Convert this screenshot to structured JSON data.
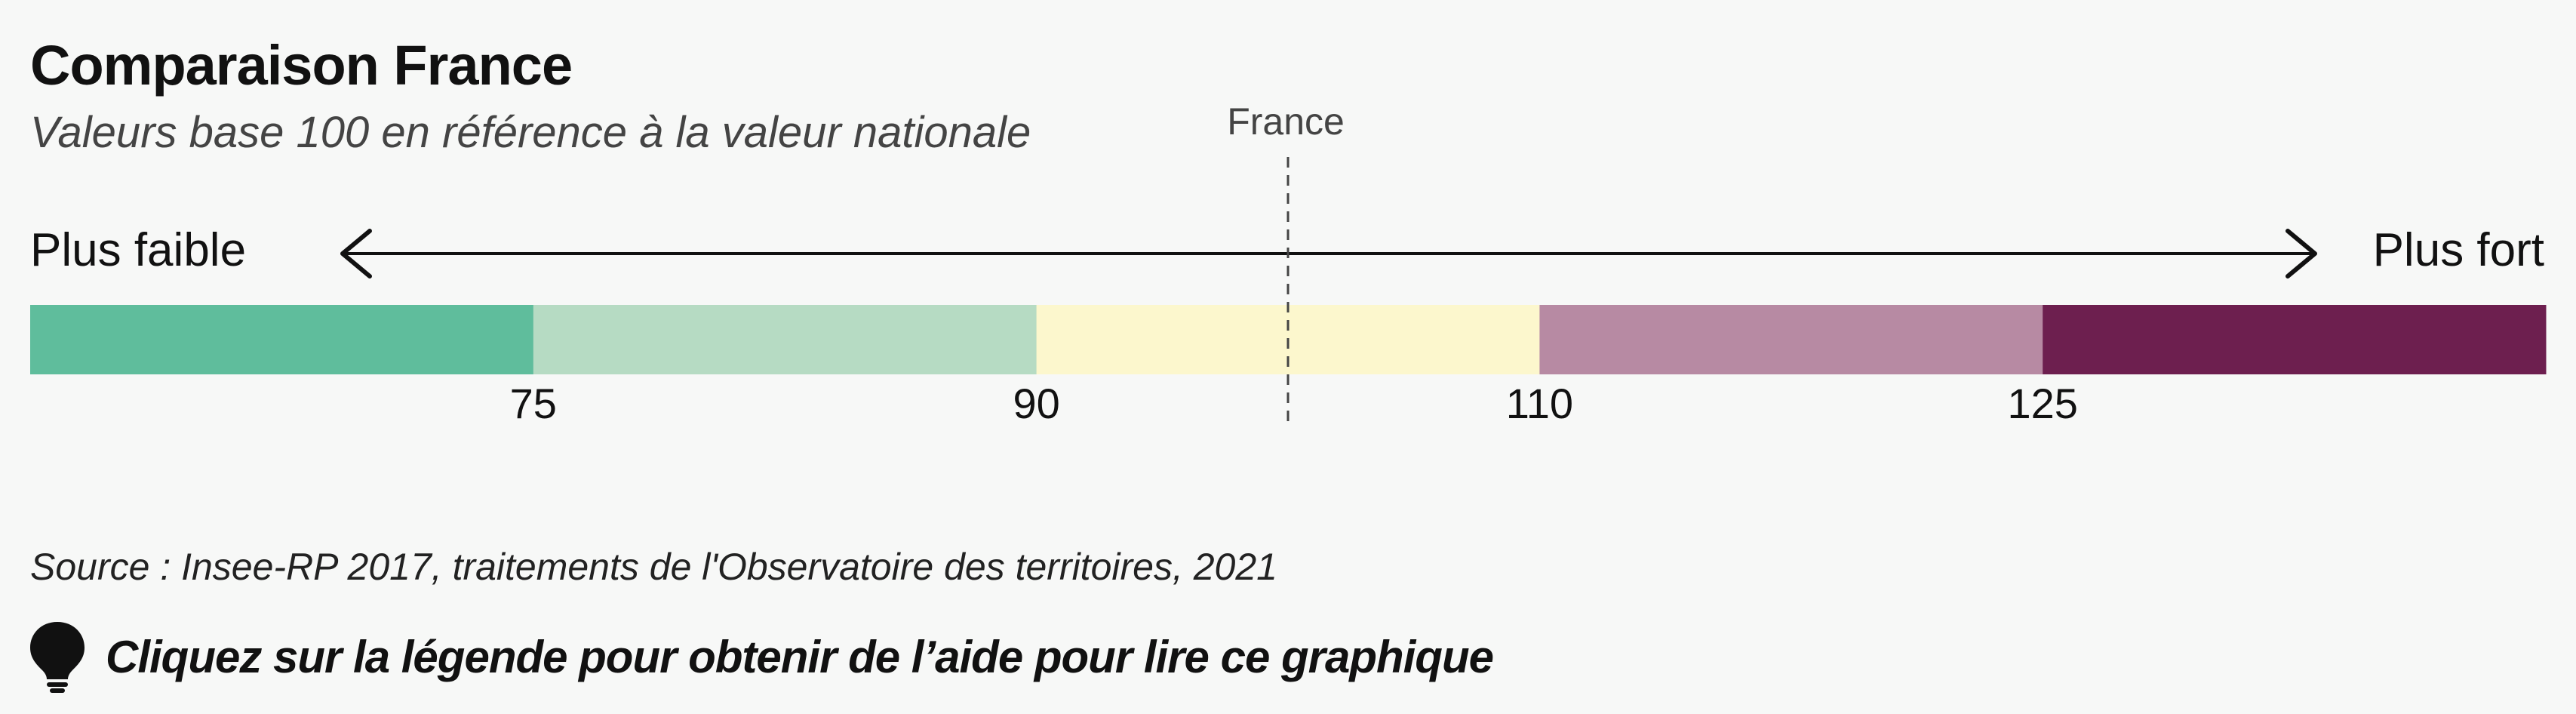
{
  "header": {
    "title": "Comparaison France",
    "subtitle": "Valeurs base 100 en référence à la valeur nationale"
  },
  "chart_data": {
    "type": "bar",
    "description_scale": "base 100",
    "reference": {
      "label": "France",
      "value": 100
    },
    "low_label": "Plus faible",
    "high_label": "Plus fort",
    "domain": [
      60,
      140
    ],
    "thresholds": [
      75,
      90,
      110,
      125
    ],
    "tick_labels": [
      "75",
      "90",
      "110",
      "125"
    ],
    "classes": [
      {
        "from": 60,
        "to": 75,
        "color": "#5fbd9c"
      },
      {
        "from": 75,
        "to": 90,
        "color": "#b6dbc3"
      },
      {
        "from": 90,
        "to": 110,
        "color": "#fcf7cd"
      },
      {
        "from": 110,
        "to": 125,
        "color": "#b78aa3"
      },
      {
        "from": 125,
        "to": 140,
        "color": "#6d1f4f"
      }
    ]
  },
  "footer": {
    "source": "Source : Insee-RP 2017,  traitements de l'Observatoire des territoires, 2021",
    "help_text": "Cliquez sur la légende pour obtenir de l’aide pour lire ce graphique",
    "help_icon": "lightbulb-icon"
  }
}
